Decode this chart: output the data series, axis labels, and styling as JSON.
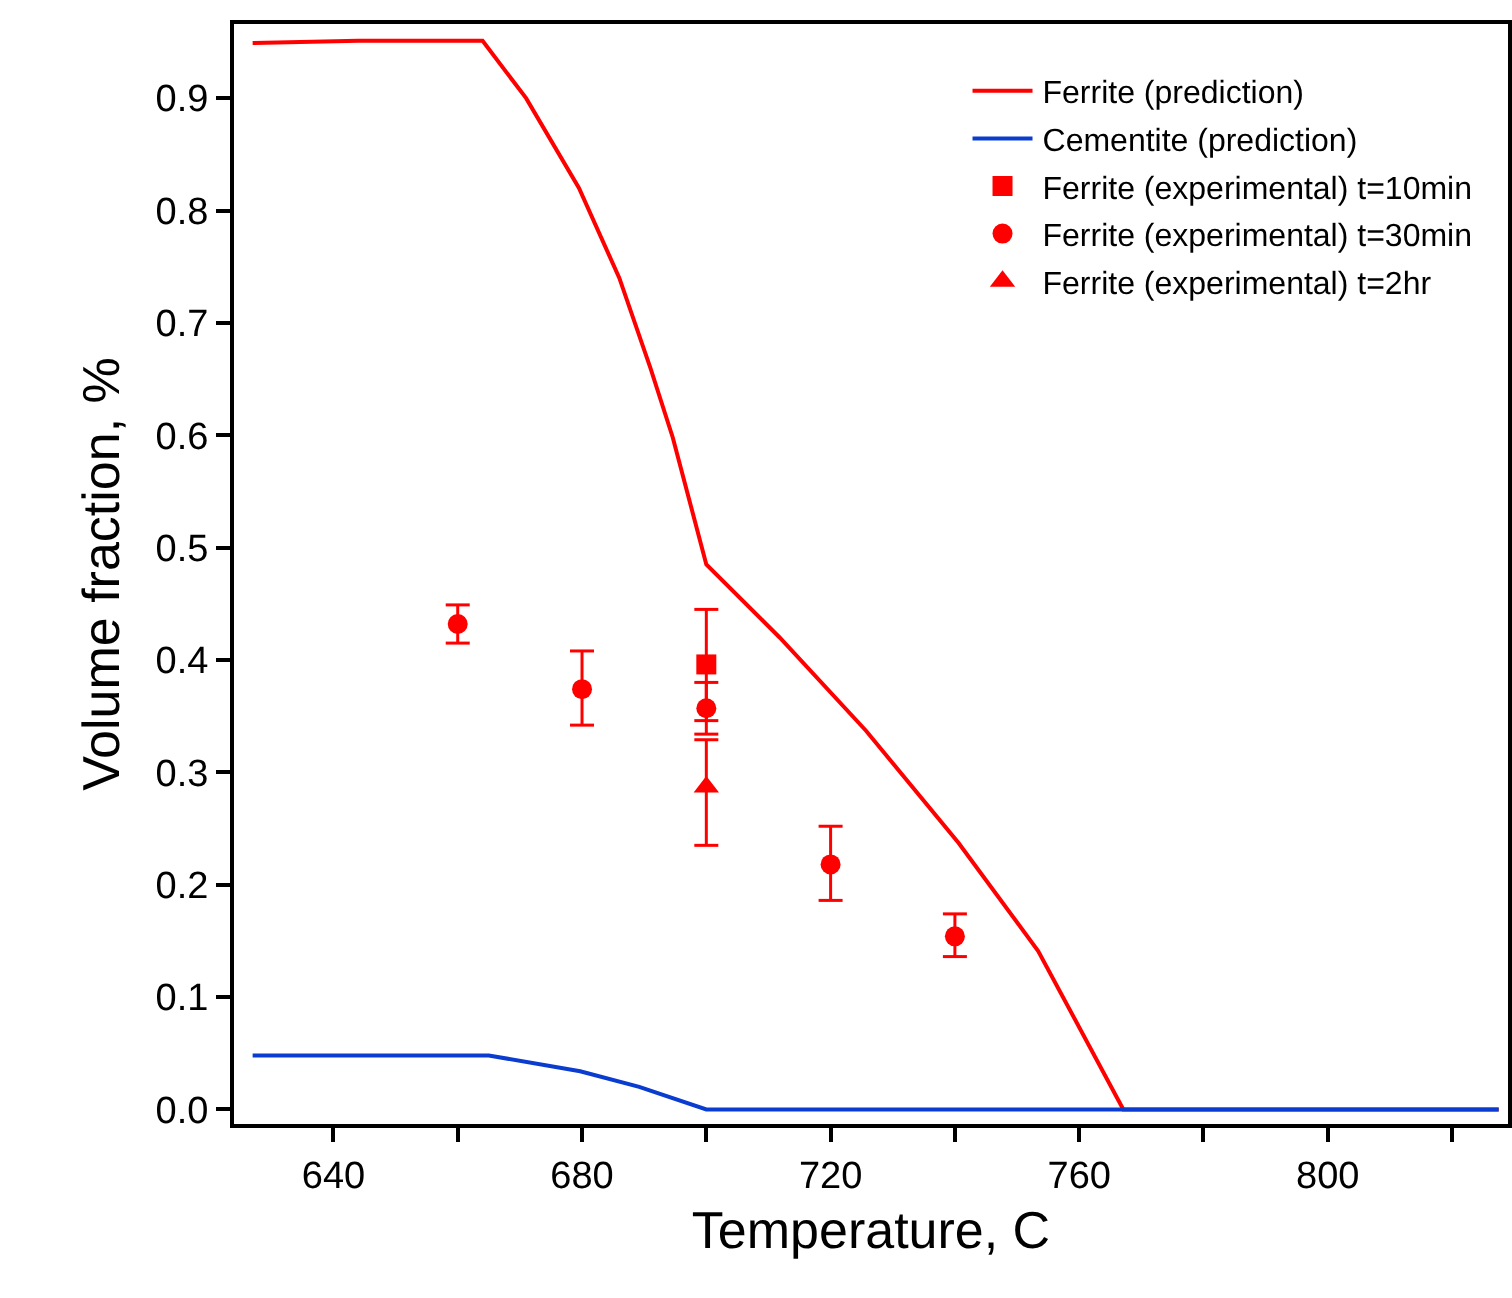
{
  "chart_data": {
    "type": "line",
    "xlabel": "Temperature, C",
    "ylabel": "Volume fraction, %",
    "xlim": [
      624,
      829
    ],
    "ylim": [
      -0.013,
      0.966
    ],
    "xticks": [
      640,
      {
        "value": 660,
        "label": null
      },
      680,
      {
        "value": 700,
        "label": null
      },
      720,
      {
        "value": 740,
        "label": null
      },
      760,
      {
        "value": 780,
        "label": null
      },
      800,
      {
        "value": 820,
        "label": null
      }
    ],
    "yticks": [
      {
        "value": 0,
        "label": "0.0"
      },
      0.1,
      0.2,
      0.3,
      0.4,
      0.5,
      0.6,
      0.7,
      0.8,
      0.9
    ],
    "grid": false,
    "legend": "top right",
    "series": [
      {
        "name": "Ferrite (prediction)",
        "marker": "none",
        "line_style": "solid",
        "color": "#ff0000",
        "x": [
          627,
          644,
          664,
          671,
          679.5,
          686,
          691,
          694.6,
          700,
          711.8,
          725.7,
          740.6,
          753.4,
          767.1,
          827.5
        ],
        "values": [
          0.949,
          0.951,
          0.951,
          0.9,
          0.82,
          0.74,
          0.66,
          0.598,
          0.485,
          0.42,
          0.337,
          0.237,
          0.141,
          0,
          0
        ]
      },
      {
        "name": "Cementite (prediction)",
        "marker": "none",
        "line_style": "solid",
        "color": "#0a3cd0",
        "x": [
          627,
          665,
          679.7,
          689.2,
          700,
          827.5
        ],
        "values": [
          0.048,
          0.048,
          0.034,
          0.02,
          0,
          0
        ]
      },
      {
        "name": "Ferrite (experimental) t=10min",
        "type": "scatter",
        "marker": "square",
        "color": "#ff0000",
        "x": [
          700
        ],
        "values": [
          0.396
        ],
        "errors": [
          [
            0.346,
            0.445
          ]
        ]
      },
      {
        "name": "Ferrite (experimental) t=30min",
        "type": "scatter",
        "marker": "circle",
        "color": "#ff0000",
        "x": [
          660,
          680,
          700,
          720,
          740
        ],
        "values": [
          0.432,
          0.374,
          0.357,
          0.218,
          0.154
        ],
        "errors": [
          [
            0.415,
            0.449
          ],
          [
            0.342,
            0.408
          ],
          [
            0.334,
            0.38
          ],
          [
            0.186,
            0.252
          ],
          [
            0.136,
            0.174
          ]
        ]
      },
      {
        "name": "Ferrite (experimental) t=2hr",
        "type": "scatter",
        "marker": "triangle",
        "color": "#ff0000",
        "x": [
          700
        ],
        "values": [
          0.287
        ],
        "errors": [
          [
            0.235,
            0.329
          ]
        ]
      }
    ]
  }
}
